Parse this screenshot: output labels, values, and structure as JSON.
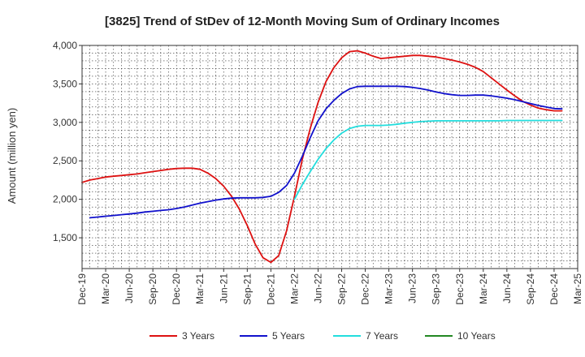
{
  "chart_data": {
    "type": "line",
    "title": "[3825]  Trend of StDev of 12-Month Moving Sum of Ordinary Incomes",
    "xlabel": "",
    "ylabel": "Amount (million yen)",
    "ylim": [
      1100,
      4000
    ],
    "yticks": [
      1500,
      2000,
      2500,
      3000,
      3500,
      4000
    ],
    "ytick_labels": [
      "1,500",
      "2,000",
      "2,500",
      "3,000",
      "3,500",
      "4,000"
    ],
    "x_ticks": [
      "Dec-19",
      "Mar-20",
      "Jun-20",
      "Sep-20",
      "Dec-20",
      "Mar-21",
      "Jun-21",
      "Sep-21",
      "Dec-21",
      "Mar-22",
      "Jun-22",
      "Sep-22",
      "Dec-22",
      "Mar-23",
      "Jun-23",
      "Sep-23",
      "Dec-23",
      "Mar-24",
      "Jun-24",
      "Sep-24",
      "Dec-24",
      "Mar-25"
    ],
    "grid": true,
    "series": [
      {
        "name": "3 Years",
        "color": "#dd1111",
        "values": [
          2220,
          2250,
          2270,
          2290,
          2300,
          2310,
          2320,
          2330,
          2345,
          2360,
          2375,
          2390,
          2400,
          2405,
          2405,
          2390,
          2340,
          2270,
          2170,
          2040,
          1870,
          1660,
          1420,
          1240,
          1180,
          1270,
          1590,
          2040,
          2520,
          2920,
          3260,
          3530,
          3710,
          3840,
          3920,
          3930,
          3900,
          3860,
          3830,
          3840,
          3850,
          3860,
          3870,
          3870,
          3860,
          3850,
          3830,
          3810,
          3785,
          3755,
          3715,
          3660,
          3580,
          3500,
          3420,
          3345,
          3275,
          3225,
          3185,
          3165,
          3150,
          3150
        ]
      },
      {
        "name": "5 Years",
        "color": "#1111cc",
        "values": [
          null,
          1760,
          1770,
          1780,
          1790,
          1800,
          1810,
          1820,
          1835,
          1845,
          1855,
          1865,
          1880,
          1900,
          1925,
          1950,
          1970,
          1990,
          2005,
          2015,
          2020,
          2020,
          2020,
          2025,
          2040,
          2090,
          2180,
          2340,
          2560,
          2800,
          3020,
          3175,
          3285,
          3375,
          3435,
          3465,
          3470,
          3470,
          3470,
          3470,
          3470,
          3465,
          3455,
          3440,
          3420,
          3395,
          3375,
          3360,
          3350,
          3350,
          3355,
          3355,
          3345,
          3330,
          3315,
          3295,
          3270,
          3245,
          3220,
          3200,
          3180,
          3175
        ]
      },
      {
        "name": "7 Years",
        "color": "#22dddd",
        "values": [
          null,
          null,
          null,
          null,
          null,
          null,
          null,
          null,
          null,
          null,
          null,
          null,
          null,
          null,
          null,
          null,
          null,
          null,
          null,
          null,
          null,
          null,
          null,
          null,
          null,
          null,
          null,
          2000,
          2190,
          2360,
          2520,
          2660,
          2770,
          2860,
          2920,
          2950,
          2960,
          2960,
          2960,
          2965,
          2975,
          2990,
          3000,
          3010,
          3015,
          3020,
          3020,
          3020,
          3020,
          3020,
          3020,
          3020,
          3020,
          3020,
          3025,
          3025,
          3025,
          3025,
          3025,
          3025,
          3025,
          3025
        ]
      },
      {
        "name": "10 Years",
        "color": "#228822",
        "values": []
      }
    ]
  }
}
